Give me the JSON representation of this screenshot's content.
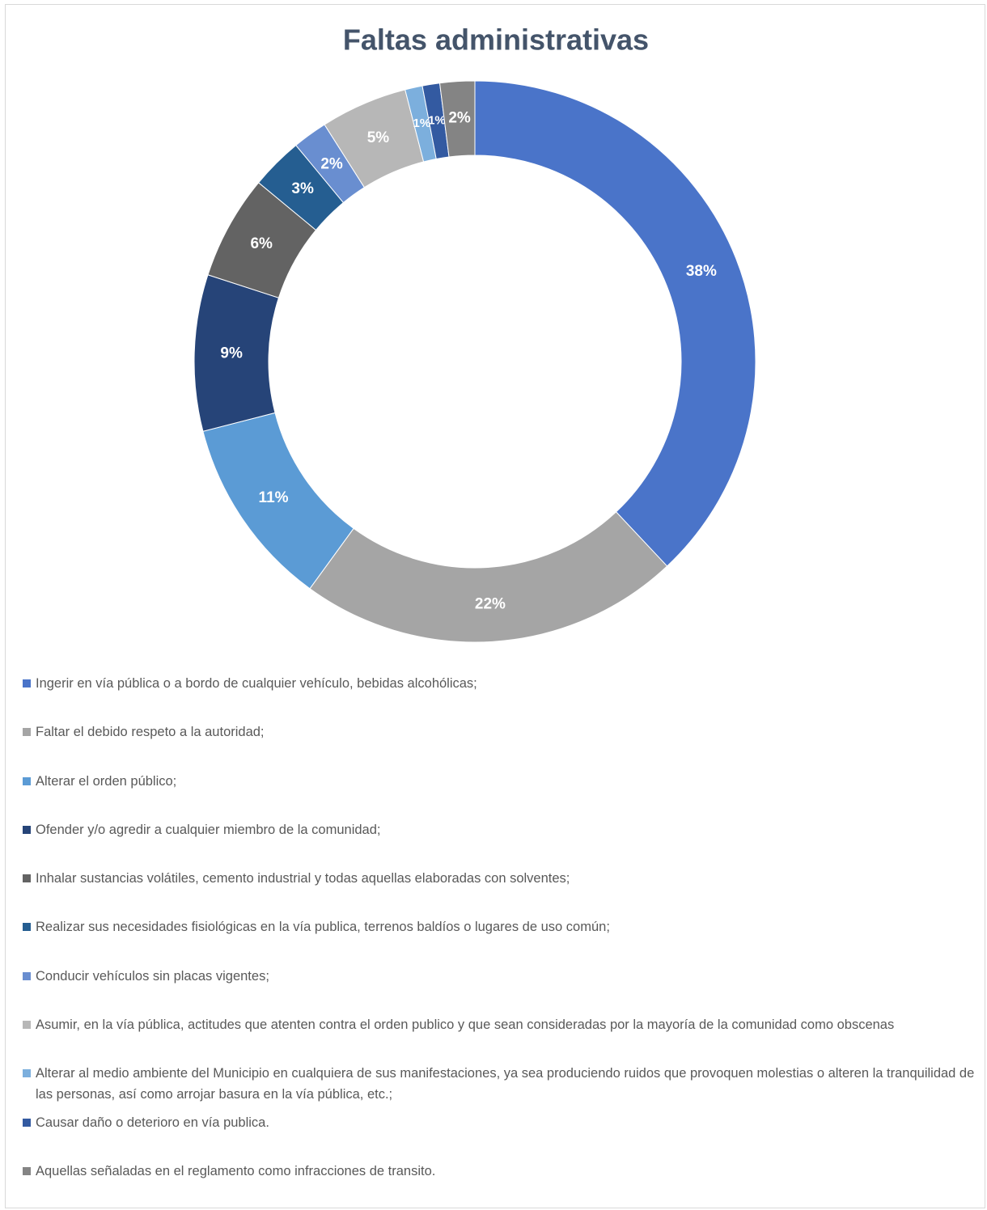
{
  "chart_data": {
    "type": "donut",
    "title": "Faltas administrativas",
    "categories": [
      "Ingerir en vía pública o a bordo de cualquier vehículo, bebidas alcohólicas;",
      "Faltar el debido respeto a la autoridad;",
      "Alterar el orden público;",
      "Ofender y/o agredir a cualquier miembro de la comunidad;",
      "Inhalar sustancias volátiles, cemento industrial y todas aquellas elaboradas con solventes;",
      "Realizar sus necesidades fisiológicas en la vía publica, terrenos baldíos o lugares de uso común;",
      "Conducir vehículos sin placas vigentes;",
      "Asumir, en la vía pública, actitudes que atenten contra el orden publico y que sean consideradas por la mayoría de la comunidad como obscenas",
      "Alterar al medio ambiente del Municipio en cualquiera de sus manifestaciones, ya sea produciendo ruidos que provoquen molestias o alteren la tranquilidad de las personas, así como arrojar basura en la vía pública, etc.;",
      "Causar daño o deterioro en vía publica.",
      "Aquellas señaladas en el reglamento como infracciones de transito."
    ],
    "values": [
      38,
      22,
      11,
      9,
      6,
      3,
      2,
      5,
      1,
      1,
      2
    ],
    "value_labels": [
      "38%",
      "22%",
      "11%",
      "9%",
      "6%",
      "3%",
      "2%",
      "5%",
      "1%",
      "1%",
      "2%"
    ],
    "colors": [
      "#4a74c9",
      "#a5a5a5",
      "#5b9bd5",
      "#264478",
      "#636363",
      "#255e91",
      "#698ed0",
      "#b7b7b7",
      "#7cafdd",
      "#335aa1",
      "#848484"
    ],
    "legend": "bottom"
  }
}
